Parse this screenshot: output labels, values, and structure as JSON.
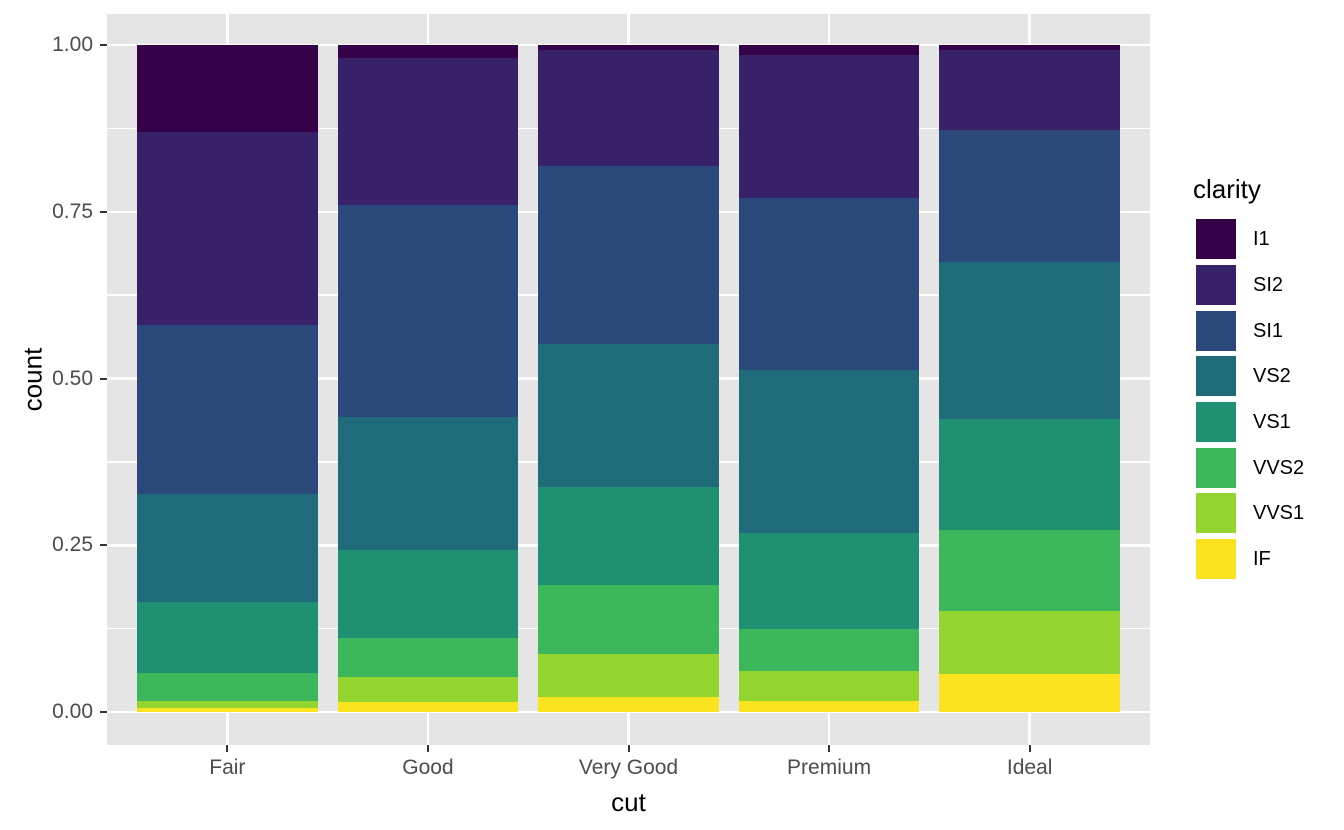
{
  "figure": {
    "background": "#ffffff"
  },
  "style": {
    "panel_background": "#e5e5e5",
    "gridline_color": "#ffffff",
    "tick_mark_color": "#333333",
    "tick_label_color": "#4d4d4d",
    "axis_title_color": "#000000"
  },
  "y_axis": {
    "title": "count",
    "tick_labels": [
      "1.00",
      "0.75",
      "0.50",
      "0.25",
      "0.00"
    ],
    "tick_values": [
      1.0,
      0.75,
      0.5,
      0.25,
      0.0
    ],
    "minor_values": [
      0.875,
      0.625,
      0.375,
      0.125
    ]
  },
  "x_axis": {
    "title": "cut",
    "tick_labels": [
      "Fair",
      "Good",
      "Very Good",
      "Premium",
      "Ideal"
    ]
  },
  "legend": {
    "title": "clarity",
    "entries": [
      {
        "label": "I1",
        "color": "#350149"
      },
      {
        "label": "SI2",
        "color": "#372169"
      },
      {
        "label": "SI1",
        "color": "#2a4879"
      },
      {
        "label": "VS2",
        "color": "#1f6b7a"
      },
      {
        "label": "VS1",
        "color": "#1f9172"
      },
      {
        "label": "VVS2",
        "color": "#3cb75b"
      },
      {
        "label": "VVS1",
        "color": "#93d52e"
      },
      {
        "label": "IF",
        "color": "#fce320"
      }
    ]
  },
  "chart_data": {
    "type": "bar",
    "subtype": "stacked-proportion-fill",
    "title": "",
    "xlabel": "cut",
    "ylabel": "count",
    "ylim": [
      0,
      1
    ],
    "grid": true,
    "legend_position": "right",
    "legend_title": "clarity",
    "categories": [
      "Fair",
      "Good",
      "Very Good",
      "Premium",
      "Ideal"
    ],
    "stack_order_top_to_bottom": [
      "I1",
      "SI2",
      "SI1",
      "VS2",
      "VS1",
      "VVS2",
      "VVS1",
      "IF"
    ],
    "series": [
      {
        "name": "I1",
        "color": "#350149",
        "values": [
          0.1304,
          0.0196,
          0.007,
          0.0149,
          0.0068
        ]
      },
      {
        "name": "SI2",
        "color": "#372169",
        "values": [
          0.2894,
          0.2203,
          0.1738,
          0.2138,
          0.1205
        ]
      },
      {
        "name": "SI1",
        "color": "#2a4879",
        "values": [
          0.2534,
          0.318,
          0.2682,
          0.2592,
          0.1987
        ]
      },
      {
        "name": "VS2",
        "color": "#1f6b7a",
        "values": [
          0.1621,
          0.1994,
          0.2144,
          0.2434,
          0.2353
        ]
      },
      {
        "name": "VS1",
        "color": "#1f9172",
        "values": [
          0.1056,
          0.1321,
          0.1469,
          0.1442,
          0.1665
        ]
      },
      {
        "name": "VVS2",
        "color": "#3cb75b",
        "values": [
          0.0429,
          0.0583,
          0.1022,
          0.0631,
          0.1209
        ]
      },
      {
        "name": "VVS1",
        "color": "#93d52e",
        "values": [
          0.0106,
          0.0379,
          0.0653,
          0.0447,
          0.095
        ]
      },
      {
        "name": "IF",
        "color": "#fce320",
        "values": [
          0.0056,
          0.0145,
          0.0222,
          0.0167,
          0.0562
        ]
      }
    ]
  }
}
